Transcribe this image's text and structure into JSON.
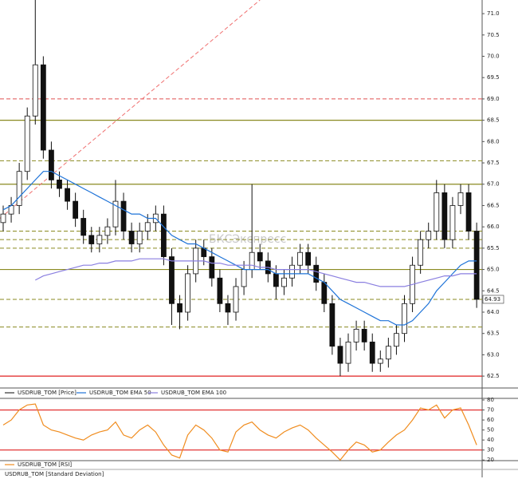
{
  "chart_data": [
    {
      "type": "candlestick",
      "name": "USDRUB_TOM [Price]",
      "open": [
        66.1,
        66.3,
        66.5,
        67.3,
        68.6,
        69.8,
        67.8,
        67.1,
        66.9,
        66.6,
        66.2,
        65.8,
        65.6,
        65.8,
        66.0,
        66.6,
        65.9,
        65.6,
        65.9,
        66.1,
        66.3,
        65.3,
        64.2,
        64.0,
        64.9,
        65.5,
        65.3,
        64.8,
        64.2,
        64.0,
        64.6,
        65.0,
        65.4,
        65.2,
        64.9,
        64.6,
        64.8,
        65.1,
        65.4,
        65.1,
        64.7,
        64.2,
        63.2,
        62.8,
        63.3,
        63.6,
        63.3,
        62.8,
        62.9,
        63.2,
        63.5,
        64.2,
        65.1,
        65.7,
        65.9,
        66.8,
        65.7,
        66.5,
        66.8,
        65.9
      ],
      "high": [
        66.5,
        66.7,
        67.5,
        68.8,
        71.4,
        70.0,
        68.0,
        67.3,
        67.1,
        66.8,
        66.4,
        66.0,
        66.0,
        66.2,
        67.1,
        66.8,
        66.1,
        66.1,
        66.3,
        66.5,
        66.5,
        65.5,
        64.4,
        65.1,
        65.7,
        65.7,
        65.5,
        65.0,
        64.4,
        64.8,
        65.2,
        67.0,
        65.6,
        65.4,
        65.1,
        65.0,
        65.3,
        65.6,
        65.6,
        65.3,
        64.9,
        64.4,
        63.4,
        63.5,
        63.8,
        63.8,
        63.5,
        63.1,
        63.4,
        63.7,
        64.4,
        65.3,
        65.9,
        66.1,
        67.1,
        67.0,
        66.7,
        67.0,
        67.0,
        66.1
      ],
      "low": [
        65.9,
        66.1,
        66.3,
        67.1,
        68.4,
        67.6,
        66.9,
        66.7,
        66.4,
        66.0,
        65.6,
        65.4,
        65.4,
        65.6,
        65.8,
        65.7,
        65.4,
        65.4,
        65.7,
        65.9,
        65.1,
        63.7,
        63.6,
        63.8,
        64.7,
        65.1,
        64.6,
        64.0,
        63.7,
        63.8,
        64.4,
        64.8,
        65.0,
        64.7,
        64.3,
        64.4,
        64.6,
        64.9,
        64.9,
        64.5,
        64.0,
        63.0,
        62.5,
        62.6,
        63.1,
        63.1,
        62.6,
        62.6,
        62.7,
        63.0,
        63.3,
        64.0,
        64.9,
        65.5,
        65.7,
        65.5,
        65.5,
        66.3,
        65.7,
        64.1
      ],
      "close": [
        66.3,
        66.5,
        67.3,
        68.6,
        69.8,
        67.8,
        67.1,
        66.9,
        66.6,
        66.2,
        65.8,
        65.6,
        65.8,
        66.0,
        66.6,
        65.9,
        65.6,
        65.9,
        66.1,
        66.3,
        65.3,
        64.2,
        64.0,
        64.9,
        65.5,
        65.3,
        64.8,
        64.2,
        64.0,
        64.6,
        65.0,
        65.4,
        65.2,
        64.9,
        64.6,
        64.8,
        65.1,
        65.4,
        65.1,
        64.7,
        64.2,
        63.2,
        62.8,
        63.3,
        63.6,
        63.3,
        62.8,
        62.9,
        63.2,
        63.5,
        64.2,
        65.1,
        65.7,
        65.9,
        66.8,
        65.7,
        66.5,
        66.8,
        65.9,
        64.3
      ],
      "series": [
        {
          "name": "USDRUB_TOM EMA 50",
          "color": "#1e73d8",
          "values": [
            66.4,
            66.5,
            66.7,
            66.9,
            67.1,
            67.3,
            67.3,
            67.2,
            67.1,
            67.0,
            66.9,
            66.8,
            66.7,
            66.6,
            66.5,
            66.4,
            66.3,
            66.3,
            66.2,
            66.2,
            66.0,
            65.8,
            65.7,
            65.6,
            65.6,
            65.5,
            65.4,
            65.3,
            65.2,
            65.1,
            65.0,
            65.0,
            65.0,
            65.0,
            64.9,
            64.9,
            64.9,
            64.9,
            64.9,
            64.8,
            64.7,
            64.5,
            64.3,
            64.2,
            64.1,
            64.0,
            63.9,
            63.8,
            63.8,
            63.7,
            63.7,
            63.8,
            64.0,
            64.2,
            64.5,
            64.7,
            64.9,
            65.1,
            65.2,
            65.2
          ]
        },
        {
          "name": "USDRUB_TOM EMA 100",
          "color": "#8a7fe0",
          "values": [
            null,
            null,
            null,
            null,
            64.75,
            64.85,
            64.9,
            64.95,
            65.0,
            65.05,
            65.1,
            65.1,
            65.15,
            65.15,
            65.2,
            65.2,
            65.2,
            65.25,
            65.25,
            65.25,
            65.25,
            65.2,
            65.2,
            65.2,
            65.2,
            65.2,
            65.15,
            65.15,
            65.1,
            65.1,
            65.1,
            65.1,
            65.05,
            65.05,
            65.0,
            65.0,
            65.0,
            65.0,
            65.0,
            64.95,
            64.9,
            64.85,
            64.8,
            64.75,
            64.7,
            64.7,
            64.65,
            64.6,
            64.6,
            64.6,
            64.6,
            64.65,
            64.7,
            64.75,
            64.8,
            64.85,
            64.85,
            64.9,
            64.9,
            64.9
          ]
        }
      ],
      "ylim": [
        62.24,
        71.32
      ],
      "yticks": [
        {
          "value": 71.0,
          "label": "71.0"
        },
        70.5,
        {
          "value": 70.0,
          "label": "70.0"
        },
        69.5,
        {
          "value": 69.0,
          "label": "69.0"
        },
        68.5,
        {
          "value": 68.0,
          "label": "68.0"
        },
        67.5,
        {
          "value": 67.0,
          "label": "67.0"
        },
        66.5,
        {
          "value": 66.0,
          "label": "66.0"
        },
        65.5,
        {
          "value": 65.0,
          "label": "65.0"
        },
        64.5,
        {
          "value": 64.0,
          "label": "64.0"
        },
        63.5,
        {
          "value": 63.0,
          "label": "63.0"
        },
        62.5
      ],
      "levels": [
        {
          "value": 69.0,
          "color": "#e05050",
          "style": "dashed"
        },
        {
          "value": 68.5,
          "color": "#8a8a20",
          "style": "solid"
        },
        {
          "value": 67.55,
          "color": "#8a8a20",
          "style": "dashed"
        },
        {
          "value": 67.0,
          "color": "#8a8a20",
          "style": "solid"
        },
        {
          "value": 65.9,
          "color": "#8a8a20",
          "style": "dashed"
        },
        {
          "value": 65.7,
          "color": "#8a8a20",
          "style": "dashed"
        },
        {
          "value": 65.5,
          "color": "#8a8a20",
          "style": "dashed"
        },
        {
          "value": 65.0,
          "color": "#8a8a20",
          "style": "solid"
        },
        {
          "value": 64.3,
          "color": "#8a8a20",
          "style": "dashed"
        },
        {
          "value": 63.65,
          "color": "#8a8a20",
          "style": "dashed"
        },
        {
          "value": 62.5,
          "color": "#e02020",
          "style": "solid"
        }
      ],
      "trendline": {
        "from": [
          -0.4,
          66.2
        ],
        "to": [
          32,
          71.32
        ],
        "color": "#f07070"
      },
      "last_label": "64.93",
      "watermark": "БКСЭкспресс"
    },
    {
      "type": "line",
      "series": [
        {
          "name": "USDRUB_TOM [RSI]",
          "color": "#f08c1e",
          "values": [
            55,
            60,
            70,
            75,
            76,
            55,
            50,
            48,
            45,
            42,
            40,
            45,
            48,
            50,
            58,
            45,
            42,
            50,
            55,
            48,
            35,
            25,
            22,
            45,
            55,
            50,
            42,
            30,
            28,
            48,
            55,
            58,
            50,
            45,
            42,
            48,
            52,
            55,
            50,
            42,
            35,
            28,
            20,
            30,
            38,
            35,
            28,
            30,
            38,
            45,
            50,
            60,
            72,
            70,
            75,
            62,
            70,
            72,
            55,
            35
          ]
        }
      ],
      "ylim": [
        19.4,
        80.8
      ],
      "yticks": [
        80,
        70,
        60,
        50,
        40,
        30,
        20
      ],
      "levels": [
        {
          "value": 70,
          "color": "#e02020",
          "style": "solid"
        },
        {
          "value": 30,
          "color": "#e02020",
          "style": "solid"
        }
      ]
    }
  ],
  "footer_legend": "USDRUB_TOM [Standard Deviation]"
}
